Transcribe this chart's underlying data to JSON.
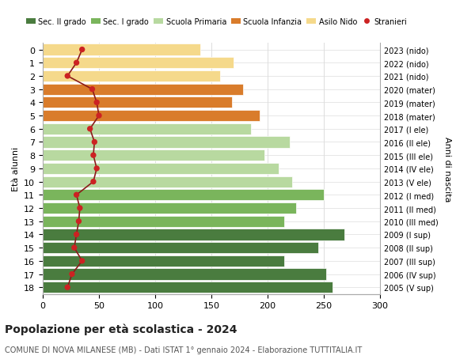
{
  "ages": [
    18,
    17,
    16,
    15,
    14,
    13,
    12,
    11,
    10,
    9,
    8,
    7,
    6,
    5,
    4,
    3,
    2,
    1,
    0
  ],
  "anni_nascita": [
    "2005 (V sup)",
    "2006 (IV sup)",
    "2007 (III sup)",
    "2008 (II sup)",
    "2009 (I sup)",
    "2010 (III med)",
    "2011 (II med)",
    "2012 (I med)",
    "2013 (V ele)",
    "2014 (IV ele)",
    "2015 (III ele)",
    "2016 (II ele)",
    "2017 (I ele)",
    "2018 (mater)",
    "2019 (mater)",
    "2020 (mater)",
    "2021 (nido)",
    "2022 (nido)",
    "2023 (nido)"
  ],
  "bar_values": [
    258,
    252,
    215,
    245,
    268,
    215,
    225,
    250,
    222,
    210,
    197,
    220,
    185,
    193,
    168,
    178,
    158,
    170,
    140
  ],
  "stranieri": [
    22,
    26,
    35,
    28,
    30,
    32,
    33,
    30,
    45,
    48,
    45,
    46,
    42,
    50,
    48,
    44,
    22,
    30,
    35
  ],
  "bar_colors": [
    "#4a7c3f",
    "#4a7c3f",
    "#4a7c3f",
    "#4a7c3f",
    "#4a7c3f",
    "#7ab55c",
    "#7ab55c",
    "#7ab55c",
    "#b8d9a0",
    "#b8d9a0",
    "#b8d9a0",
    "#b8d9a0",
    "#b8d9a0",
    "#d97c2b",
    "#d97c2b",
    "#d97c2b",
    "#f5d98b",
    "#f5d98b",
    "#f5d98b"
  ],
  "legend_labels": [
    "Sec. II grado",
    "Sec. I grado",
    "Scuola Primaria",
    "Scuola Infanzia",
    "Asilo Nido",
    "Stranieri"
  ],
  "legend_colors": [
    "#4a7c3f",
    "#7ab55c",
    "#b8d9a0",
    "#d97c2b",
    "#f5d98b",
    "#b22222"
  ],
  "title": "Popolazione per età scolastica - 2024",
  "subtitle": "COMUNE DI NOVA MILANESE (MB) - Dati ISTAT 1° gennaio 2024 - Elaborazione TUTTITALIA.IT",
  "ylabel_left": "Età alunni",
  "ylabel_right": "Anni di nascita",
  "xlim": [
    0,
    300
  ],
  "xticks": [
    0,
    50,
    100,
    150,
    200,
    250,
    300
  ],
  "bar_edge_color": "white",
  "stranieri_line_color": "#8b1a1a",
  "stranieri_marker_color": "#cc2222",
  "bg_color": "#ffffff",
  "grid_color": "#dddddd"
}
